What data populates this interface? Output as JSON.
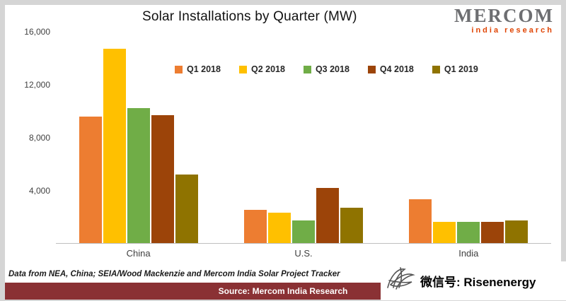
{
  "title": "Solar Installations by Quarter (MW)",
  "logo": {
    "primary": "MERCOM",
    "secondary": "india research"
  },
  "footnote": "Data from NEA, China; SEIA/Wood Mackenzie and Mercom India Solar Project Tracker",
  "source_bar": {
    "label": "Source: Mercom India Research"
  },
  "watermark": {
    "text": "微信号: Risenenergy",
    "icon": "scribble-bird-icon"
  },
  "colors": {
    "frame_gray": "#d5d5d5",
    "source_bar_maroon": "#8a3134",
    "logo_gray": "#6d6e71",
    "logo_orange": "#e04403"
  },
  "chart_data": {
    "type": "bar",
    "title": "Solar Installations by Quarter (MW)",
    "categories": [
      "China",
      "U.S.",
      "India"
    ],
    "series": [
      {
        "name": "Q1 2018",
        "color": "#ED7D31",
        "values": [
          9600,
          2500,
          3300
        ]
      },
      {
        "name": "Q2 2018",
        "color": "#FFC000",
        "values": [
          14700,
          2300,
          1600
        ]
      },
      {
        "name": "Q3 2018",
        "color": "#70AD47",
        "values": [
          10200,
          1700,
          1600
        ]
      },
      {
        "name": "Q4 2018",
        "color": "#9C4409",
        "values": [
          9700,
          4200,
          1600
        ]
      },
      {
        "name": "Q1 2019",
        "color": "#8F7300",
        "values": [
          5200,
          2700,
          1700
        ]
      }
    ],
    "ylim": [
      0,
      16000
    ],
    "yticks": [
      {
        "value": 4000,
        "label": "4,000"
      },
      {
        "value": 8000,
        "label": "8,000"
      },
      {
        "value": 12000,
        "label": "12,000"
      },
      {
        "value": 16000,
        "label": "16,000"
      }
    ],
    "legend_position": "top",
    "grid": false
  }
}
